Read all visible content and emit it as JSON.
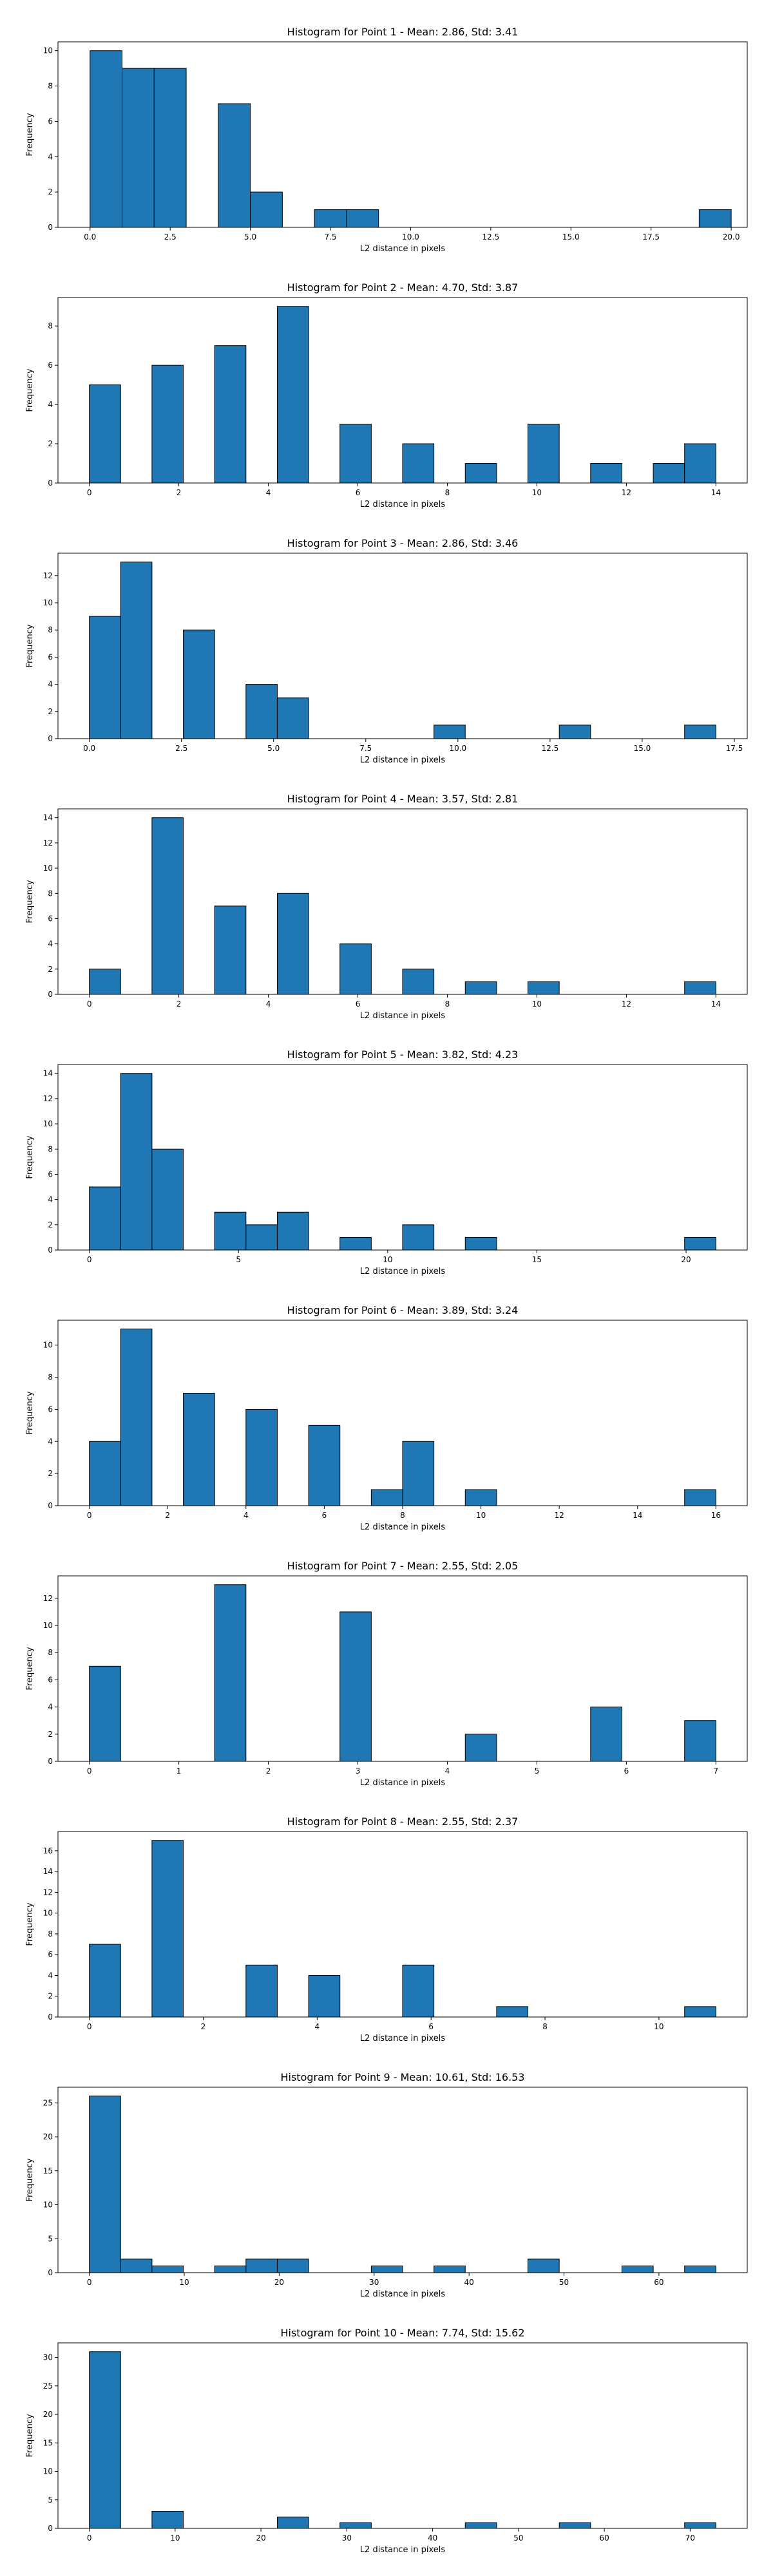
{
  "chart_data": [
    {
      "type": "bar",
      "title": "Histogram for Point 1 - Mean: 2.86, Std: 3.41",
      "xlabel": "L2 distance in pixels",
      "ylabel": "Frequency",
      "xlim": [
        -1.0,
        20.5
      ],
      "ylim": [
        0,
        10.5
      ],
      "xticks": [
        0.0,
        2.5,
        5.0,
        7.5,
        10.0,
        12.5,
        15.0,
        17.5,
        20.0
      ],
      "xtick_labels": [
        "0.0",
        "2.5",
        "5.0",
        "7.5",
        "10.0",
        "12.5",
        "15.0",
        "17.5",
        "20.0"
      ],
      "yticks": [
        0,
        2,
        4,
        6,
        8,
        10
      ],
      "bin_width": 1.0,
      "bins": [
        {
          "x": 0.0,
          "count": 10
        },
        {
          "x": 1.0,
          "count": 9
        },
        {
          "x": 2.0,
          "count": 9
        },
        {
          "x": 4.0,
          "count": 7
        },
        {
          "x": 5.0,
          "count": 2
        },
        {
          "x": 7.0,
          "count": 1
        },
        {
          "x": 8.0,
          "count": 1
        },
        {
          "x": 19.0,
          "count": 1
        }
      ]
    },
    {
      "type": "bar",
      "title": "Histogram for Point 2 - Mean: 4.70, Std: 3.87",
      "xlabel": "L2 distance in pixels",
      "ylabel": "Frequency",
      "xlim": [
        -0.7,
        14.7
      ],
      "ylim": [
        0,
        9.45
      ],
      "xticks": [
        0,
        2,
        4,
        6,
        8,
        10,
        12,
        14
      ],
      "xtick_labels": [
        "0",
        "2",
        "4",
        "6",
        "8",
        "10",
        "12",
        "14"
      ],
      "yticks": [
        0,
        2,
        4,
        6,
        8
      ],
      "bin_width": 0.7,
      "bins": [
        {
          "x": 0.0,
          "count": 5
        },
        {
          "x": 1.4,
          "count": 6
        },
        {
          "x": 2.8,
          "count": 7
        },
        {
          "x": 4.2,
          "count": 9
        },
        {
          "x": 5.6,
          "count": 3
        },
        {
          "x": 7.0,
          "count": 2
        },
        {
          "x": 8.4,
          "count": 1
        },
        {
          "x": 9.8,
          "count": 3
        },
        {
          "x": 11.2,
          "count": 1
        },
        {
          "x": 12.6,
          "count": 1
        },
        {
          "x": 13.3,
          "count": 2
        }
      ]
    },
    {
      "type": "bar",
      "title": "Histogram for Point 3 - Mean: 2.86, Std: 3.46",
      "xlabel": "L2 distance in pixels",
      "ylabel": "Frequency",
      "xlim": [
        -0.85,
        17.85
      ],
      "ylim": [
        0,
        13.65
      ],
      "xticks": [
        0.0,
        2.5,
        5.0,
        7.5,
        10.0,
        12.5,
        15.0,
        17.5
      ],
      "xtick_labels": [
        "0.0",
        "2.5",
        "5.0",
        "7.5",
        "10.0",
        "12.5",
        "15.0",
        "17.5"
      ],
      "yticks": [
        0,
        2,
        4,
        6,
        8,
        10,
        12
      ],
      "bin_width": 0.85,
      "bins": [
        {
          "x": 0.0,
          "count": 9
        },
        {
          "x": 0.85,
          "count": 13
        },
        {
          "x": 2.55,
          "count": 8
        },
        {
          "x": 4.25,
          "count": 4
        },
        {
          "x": 5.1,
          "count": 3
        },
        {
          "x": 9.35,
          "count": 1
        },
        {
          "x": 12.75,
          "count": 1
        },
        {
          "x": 16.15,
          "count": 1
        }
      ]
    },
    {
      "type": "bar",
      "title": "Histogram for Point 4 - Mean: 3.57, Std: 2.81",
      "xlabel": "L2 distance in pixels",
      "ylabel": "Frequency",
      "xlim": [
        -0.7,
        14.7
      ],
      "ylim": [
        0,
        14.7
      ],
      "xticks": [
        0,
        2,
        4,
        6,
        8,
        10,
        12,
        14
      ],
      "xtick_labels": [
        "0",
        "2",
        "4",
        "6",
        "8",
        "10",
        "12",
        "14"
      ],
      "yticks": [
        0,
        2,
        4,
        6,
        8,
        10,
        12,
        14
      ],
      "bin_width": 0.7,
      "bins": [
        {
          "x": 0.0,
          "count": 2
        },
        {
          "x": 1.4,
          "count": 14
        },
        {
          "x": 2.8,
          "count": 7
        },
        {
          "x": 4.2,
          "count": 8
        },
        {
          "x": 5.6,
          "count": 4
        },
        {
          "x": 7.0,
          "count": 2
        },
        {
          "x": 8.4,
          "count": 1
        },
        {
          "x": 9.8,
          "count": 1
        },
        {
          "x": 13.3,
          "count": 1
        }
      ]
    },
    {
      "type": "bar",
      "title": "Histogram for Point 5 - Mean: 3.82, Std: 4.23",
      "xlabel": "L2 distance in pixels",
      "ylabel": "Frequency",
      "xlim": [
        -1.05,
        22.05
      ],
      "ylim": [
        0,
        14.7
      ],
      "xticks": [
        0,
        5,
        10,
        15,
        20
      ],
      "xtick_labels": [
        "0",
        "5",
        "10",
        "15",
        "20"
      ],
      "yticks": [
        0,
        2,
        4,
        6,
        8,
        10,
        12,
        14
      ],
      "bin_width": 1.05,
      "bins": [
        {
          "x": 0.0,
          "count": 5
        },
        {
          "x": 1.05,
          "count": 14
        },
        {
          "x": 2.1,
          "count": 8
        },
        {
          "x": 4.2,
          "count": 3
        },
        {
          "x": 5.25,
          "count": 2
        },
        {
          "x": 6.3,
          "count": 3
        },
        {
          "x": 8.4,
          "count": 1
        },
        {
          "x": 10.5,
          "count": 2
        },
        {
          "x": 12.6,
          "count": 1
        },
        {
          "x": 19.95,
          "count": 1
        }
      ]
    },
    {
      "type": "bar",
      "title": "Histogram for Point 6 - Mean: 3.89, Std: 3.24",
      "xlabel": "L2 distance in pixels",
      "ylabel": "Frequency",
      "xlim": [
        -0.8,
        16.8
      ],
      "ylim": [
        0,
        11.55
      ],
      "xticks": [
        0,
        2,
        4,
        6,
        8,
        10,
        12,
        14,
        16
      ],
      "xtick_labels": [
        "0",
        "2",
        "4",
        "6",
        "8",
        "10",
        "12",
        "14",
        "16"
      ],
      "yticks": [
        0,
        2,
        4,
        6,
        8,
        10
      ],
      "bin_width": 0.8,
      "bins": [
        {
          "x": 0.0,
          "count": 4
        },
        {
          "x": 0.8,
          "count": 11
        },
        {
          "x": 2.4,
          "count": 7
        },
        {
          "x": 4.0,
          "count": 6
        },
        {
          "x": 5.6,
          "count": 5
        },
        {
          "x": 7.2,
          "count": 1
        },
        {
          "x": 8.0,
          "count": 4
        },
        {
          "x": 9.6,
          "count": 1
        },
        {
          "x": 15.2,
          "count": 1
        }
      ]
    },
    {
      "type": "bar",
      "title": "Histogram for Point 7 - Mean: 2.55, Std: 2.05",
      "xlabel": "L2 distance in pixels",
      "ylabel": "Frequency",
      "xlim": [
        -0.35,
        7.35
      ],
      "ylim": [
        0,
        13.65
      ],
      "xticks": [
        0,
        1,
        2,
        3,
        4,
        5,
        6,
        7
      ],
      "xtick_labels": [
        "0",
        "1",
        "2",
        "3",
        "4",
        "5",
        "6",
        "7"
      ],
      "yticks": [
        0,
        2,
        4,
        6,
        8,
        10,
        12
      ],
      "bin_width": 0.35,
      "bins": [
        {
          "x": 0.0,
          "count": 7
        },
        {
          "x": 1.4,
          "count": 13
        },
        {
          "x": 2.8,
          "count": 11
        },
        {
          "x": 4.2,
          "count": 2
        },
        {
          "x": 5.6,
          "count": 4
        },
        {
          "x": 6.65,
          "count": 3
        }
      ]
    },
    {
      "type": "bar",
      "title": "Histogram for Point 8 - Mean: 2.55, Std: 2.37",
      "xlabel": "L2 distance in pixels",
      "ylabel": "Frequency",
      "xlim": [
        -0.55,
        11.55
      ],
      "ylim": [
        0,
        17.85
      ],
      "xticks": [
        0,
        2,
        4,
        6,
        8,
        10
      ],
      "xtick_labels": [
        "0",
        "2",
        "4",
        "6",
        "8",
        "10"
      ],
      "yticks": [
        0,
        2,
        4,
        6,
        8,
        10,
        12,
        14,
        16
      ],
      "bin_width": 0.55,
      "bins": [
        {
          "x": 0.0,
          "count": 7
        },
        {
          "x": 1.1,
          "count": 17
        },
        {
          "x": 2.75,
          "count": 5
        },
        {
          "x": 3.85,
          "count": 4
        },
        {
          "x": 5.5,
          "count": 5
        },
        {
          "x": 7.15,
          "count": 1
        },
        {
          "x": 10.45,
          "count": 1
        }
      ]
    },
    {
      "type": "bar",
      "title": "Histogram for Point 9 - Mean: 10.61, Std: 16.53",
      "xlabel": "L2 distance in pixels",
      "ylabel": "Frequency",
      "xlim": [
        -3.3,
        69.3
      ],
      "ylim": [
        0,
        27.3
      ],
      "xticks": [
        0,
        10,
        20,
        30,
        40,
        50,
        60
      ],
      "xtick_labels": [
        "0",
        "10",
        "20",
        "30",
        "40",
        "50",
        "60"
      ],
      "yticks": [
        0,
        5,
        10,
        15,
        20,
        25
      ],
      "bin_width": 3.3,
      "bins": [
        {
          "x": 0.0,
          "count": 26
        },
        {
          "x": 3.3,
          "count": 2
        },
        {
          "x": 6.6,
          "count": 1
        },
        {
          "x": 13.2,
          "count": 1
        },
        {
          "x": 16.5,
          "count": 2
        },
        {
          "x": 19.8,
          "count": 2
        },
        {
          "x": 29.7,
          "count": 1
        },
        {
          "x": 36.3,
          "count": 1
        },
        {
          "x": 46.2,
          "count": 2
        },
        {
          "x": 56.1,
          "count": 1
        },
        {
          "x": 62.7,
          "count": 1
        }
      ]
    },
    {
      "type": "bar",
      "title": "Histogram for Point 10 - Mean: 7.74, Std: 15.62",
      "xlabel": "L2 distance in pixels",
      "ylabel": "Frequency",
      "xlim": [
        -3.65,
        76.65
      ],
      "ylim": [
        0,
        32.55
      ],
      "xticks": [
        0,
        10,
        20,
        30,
        40,
        50,
        60,
        70
      ],
      "xtick_labels": [
        "0",
        "10",
        "20",
        "30",
        "40",
        "50",
        "60",
        "70"
      ],
      "yticks": [
        0,
        5,
        10,
        15,
        20,
        25,
        30
      ],
      "bin_width": 3.65,
      "bins": [
        {
          "x": 0.0,
          "count": 31
        },
        {
          "x": 7.3,
          "count": 3
        },
        {
          "x": 21.9,
          "count": 2
        },
        {
          "x": 29.2,
          "count": 1
        },
        {
          "x": 43.8,
          "count": 1
        },
        {
          "x": 54.75,
          "count": 1
        },
        {
          "x": 69.35,
          "count": 1
        }
      ]
    }
  ],
  "colors": {
    "bar_fill": "#1f77b4",
    "bar_edge": "#000000",
    "axis": "#000000"
  }
}
